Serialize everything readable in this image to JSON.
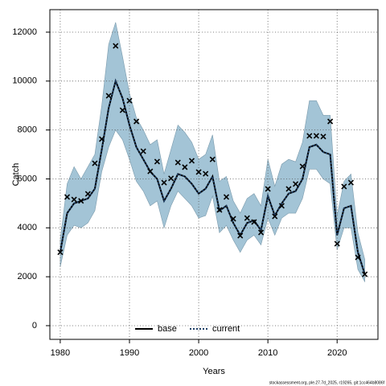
{
  "chart_data": {
    "type": "line",
    "xlabel": "Years",
    "ylabel": "Catch",
    "footer": "stockassessment.org, ple.27.7d_2025, r19265, git:1cc464b8086f",
    "x": [
      1980,
      1981,
      1982,
      1983,
      1984,
      1985,
      1986,
      1987,
      1988,
      1989,
      1990,
      1991,
      1992,
      1993,
      1994,
      1995,
      1996,
      1997,
      1998,
      1999,
      2000,
      2001,
      2002,
      2003,
      2004,
      2005,
      2006,
      2007,
      2008,
      2009,
      2010,
      2011,
      2012,
      2013,
      2014,
      2015,
      2016,
      2017,
      2018,
      2019,
      2020,
      2021,
      2022,
      2023,
      2024
    ],
    "xlim": [
      1978.5,
      2025.9
    ],
    "ylim": [
      -560,
      12920
    ],
    "xticks": [
      1980,
      1990,
      2000,
      2010,
      2020
    ],
    "yticks": [
      0,
      2000,
      4000,
      6000,
      8000,
      10000,
      12000
    ],
    "grid": true,
    "legend": "bottom",
    "band_color": "#a3c4d6",
    "observation_color": "#000000",
    "observations": [
      3000,
      5260,
      5160,
      5100,
      5390,
      6640,
      7630,
      9400,
      11440,
      8810,
      9200,
      8350,
      7130,
      6310,
      6710,
      5850,
      6020,
      6670,
      6480,
      6740,
      6280,
      6210,
      6800,
      4730,
      5260,
      4370,
      3680,
      4400,
      4240,
      3810,
      5590,
      4470,
      4900,
      5590,
      5790,
      6510,
      7760,
      7760,
      7730,
      8350,
      3350,
      5690,
      5850,
      2790,
      2100
    ],
    "series": [
      {
        "name": "base",
        "color": "#000000",
        "values": [
          3000,
          4600,
          5000,
          5100,
          5200,
          5600,
          7200,
          8900,
          10000,
          9300,
          8200,
          7300,
          6800,
          6300,
          6000,
          5100,
          5600,
          6200,
          6100,
          5800,
          5400,
          5600,
          6100,
          4700,
          4900,
          4200,
          3700,
          4200,
          4300,
          3900,
          5300,
          4500,
          5000,
          5400,
          5500,
          6000,
          7300,
          7400,
          7100,
          7000,
          3700,
          4800,
          4900,
          3000,
          2100
        ]
      },
      {
        "name": "current",
        "color": "#1f3f66",
        "values": [
          3000,
          4600,
          5000,
          5100,
          5200,
          5600,
          7200,
          8900,
          10000,
          9300,
          8200,
          7300,
          6800,
          6300,
          6000,
          5100,
          5600,
          6200,
          6100,
          5800,
          5400,
          5600,
          6100,
          4700,
          4900,
          4200,
          3700,
          4200,
          4300,
          3900,
          5300,
          4500,
          5000,
          5400,
          5500,
          6000,
          7300,
          7400,
          7100,
          7000,
          3700,
          4800,
          4900,
          3000,
          2100
        ],
        "lower": [
          2400,
          3700,
          4100,
          4000,
          4200,
          4700,
          6300,
          7300,
          8000,
          7600,
          6800,
          5900,
          5500,
          4900,
          5100,
          4000,
          4900,
          5500,
          5200,
          4900,
          4400,
          4500,
          5300,
          3800,
          4100,
          3500,
          3000,
          3500,
          3700,
          3300,
          4400,
          3700,
          4400,
          4600,
          4600,
          5200,
          6400,
          6400,
          6000,
          5800,
          3100,
          4000,
          4000,
          2300,
          1800
        ],
        "upper": [
          3500,
          5800,
          6500,
          6000,
          6500,
          7000,
          9000,
          11500,
          12400,
          11000,
          9500,
          8500,
          8000,
          7400,
          7600,
          6200,
          7200,
          8200,
          7900,
          7500,
          6800,
          7000,
          7800,
          5900,
          6100,
          5100,
          4600,
          5200,
          5400,
          4900,
          6800,
          5700,
          6600,
          6800,
          6700,
          7500,
          9200,
          9200,
          8600,
          8600,
          4500,
          5900,
          6200,
          3800,
          2700
        ]
      }
    ]
  }
}
